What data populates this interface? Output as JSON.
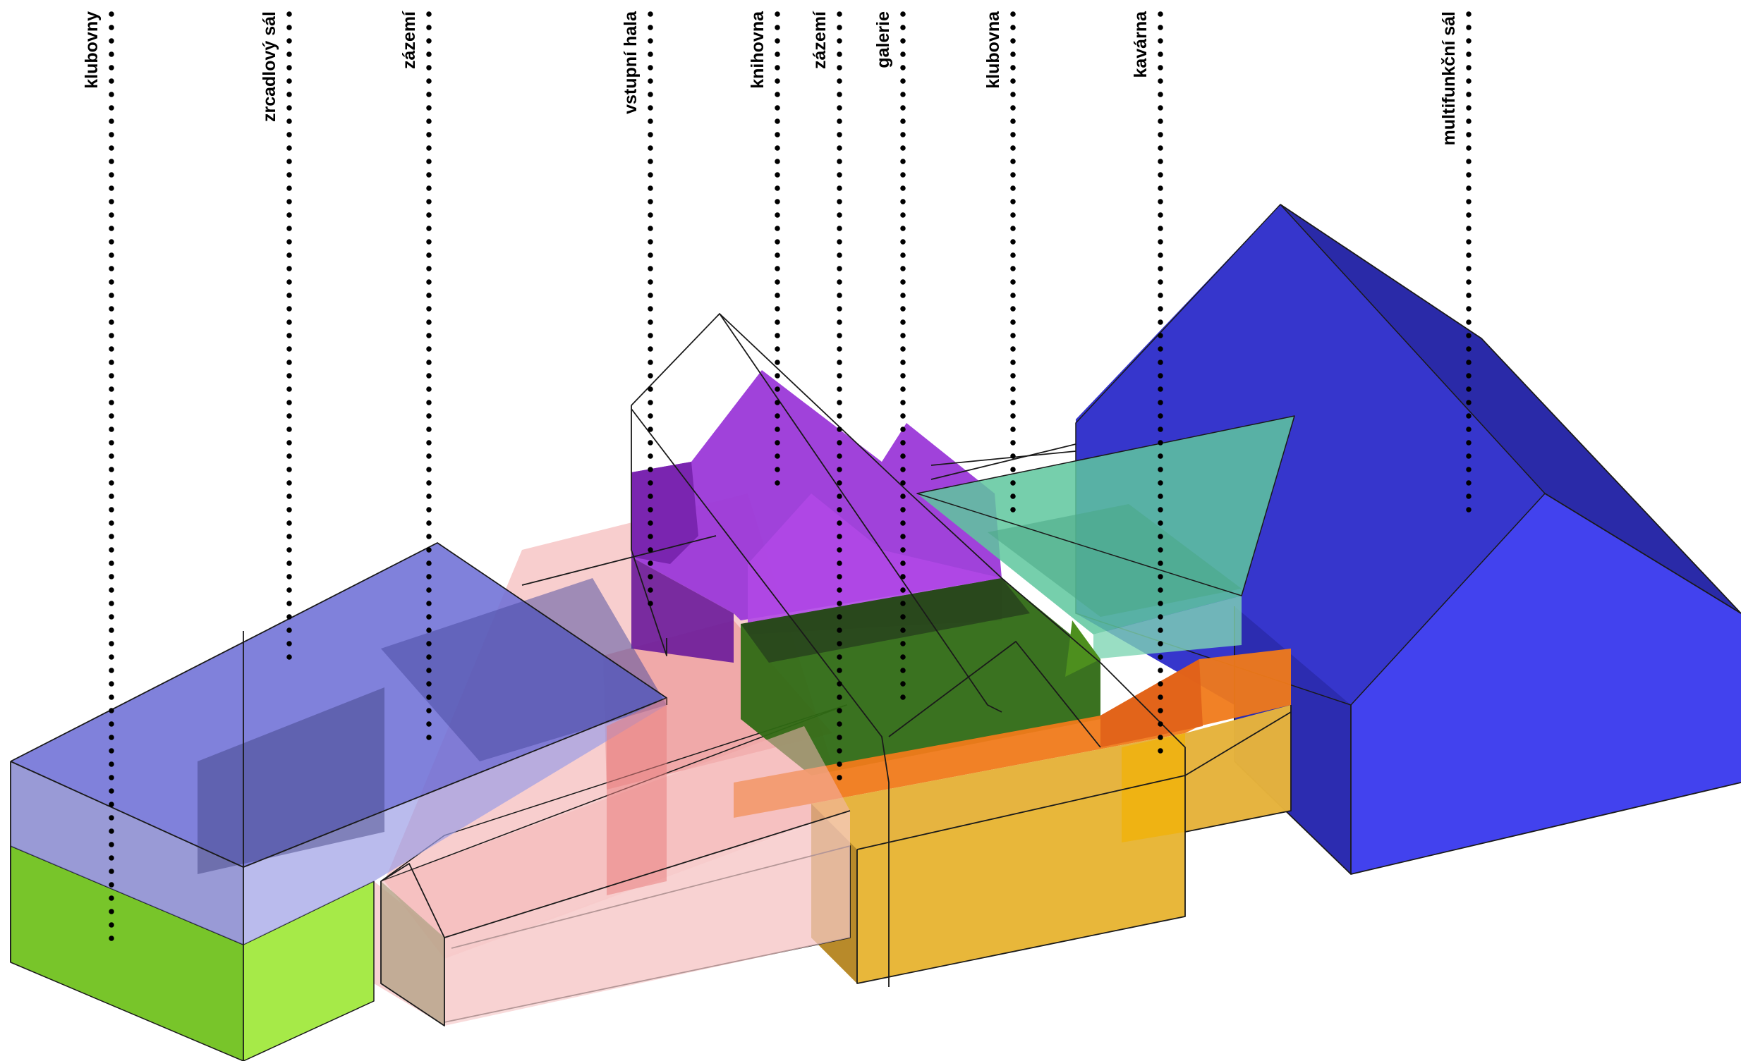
{
  "labels": {
    "klubovny": "klubovny",
    "zrcadlovy_sal": "zrcadlový sál",
    "zazemi_1": "zázemí",
    "vstupni_hala": "vstupní hala",
    "knihovna": "knihovna",
    "zazemi_2": "zázemí",
    "galerie": "galerie",
    "klubovna": "klubovna",
    "kavarna": "kavárna",
    "multifunkcni_sal": "multifunkční sál"
  },
  "colors": {
    "blue_hall": "#3b3bd6",
    "blue_hall_light": "#4545ee",
    "blue_hall_dark": "#2a2aa8",
    "lavender_box": "#6e70d6",
    "green_block": "#8ad640",
    "pink_volume": "#f2a5a5",
    "purple_volume": "#9a36d8",
    "teal_volume": "#5ec79d",
    "orange_band": "#f07a1a",
    "yellow_block": "#e6b23c",
    "dark_green": "#2f6e10"
  }
}
